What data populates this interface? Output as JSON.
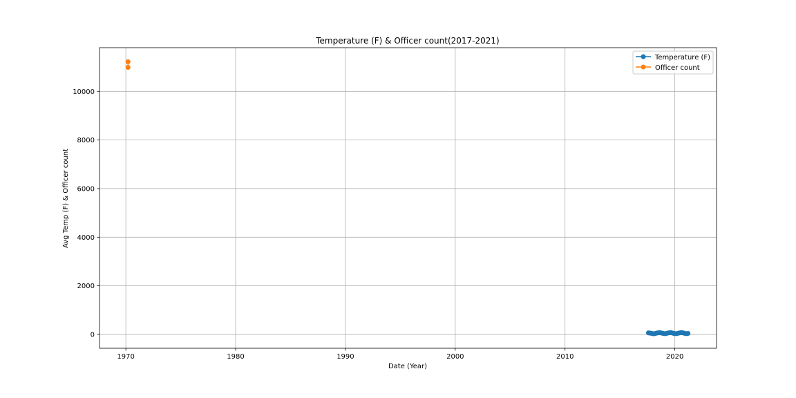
{
  "chart_data": {
    "type": "line",
    "title": "Temperature (F) & Officer count(2017-2021)",
    "xlabel": "Date (Year)",
    "ylabel": "Avg Temp (F) & Officer count",
    "xlim": [
      1967.6,
      2023.8
    ],
    "ylim": [
      -570,
      11800
    ],
    "xticks": [
      1970,
      1980,
      1990,
      2000,
      2010,
      2020
    ],
    "yticks": [
      0,
      2000,
      4000,
      6000,
      8000,
      10000
    ],
    "grid": true,
    "legend_position": "upper right",
    "series": [
      {
        "name": "Temperature (F)",
        "color": "#1f77b4",
        "points": [
          [
            2017.6,
            62
          ],
          [
            2017.7,
            58
          ],
          [
            2017.8,
            50
          ],
          [
            2017.9,
            42
          ],
          [
            2018.0,
            32
          ],
          [
            2018.1,
            28
          ],
          [
            2018.2,
            36
          ],
          [
            2018.3,
            48
          ],
          [
            2018.4,
            58
          ],
          [
            2018.5,
            68
          ],
          [
            2018.6,
            70
          ],
          [
            2018.7,
            66
          ],
          [
            2018.8,
            56
          ],
          [
            2018.9,
            44
          ],
          [
            2019.0,
            34
          ],
          [
            2019.1,
            30
          ],
          [
            2019.2,
            38
          ],
          [
            2019.3,
            50
          ],
          [
            2019.4,
            60
          ],
          [
            2019.5,
            68
          ],
          [
            2019.6,
            72
          ],
          [
            2019.7,
            66
          ],
          [
            2019.8,
            54
          ],
          [
            2019.9,
            42
          ],
          [
            2020.0,
            34
          ],
          [
            2020.1,
            30
          ],
          [
            2020.2,
            36
          ],
          [
            2020.3,
            48
          ],
          [
            2020.4,
            60
          ],
          [
            2020.5,
            68
          ],
          [
            2020.6,
            72
          ],
          [
            2020.7,
            68
          ],
          [
            2020.8,
            56
          ],
          [
            2020.9,
            44
          ],
          [
            2021.0,
            32
          ],
          [
            2021.1,
            30
          ],
          [
            2021.2,
            40
          ]
        ]
      },
      {
        "name": "Officer count",
        "color": "#ff7f0e",
        "points": [
          [
            1970.2,
            11220
          ],
          [
            1970.2,
            10990
          ]
        ]
      }
    ]
  }
}
